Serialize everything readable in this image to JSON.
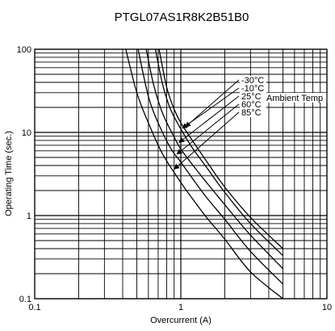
{
  "chart_data": {
    "type": "line",
    "title": "PTGL07AS1R8K2B51B0",
    "xlabel": "Overcurrent (A)",
    "ylabel": "Operating Time (sec.)",
    "xscale": "log",
    "yscale": "log",
    "xlim": [
      0.1,
      10
    ],
    "ylim": [
      0.1,
      100
    ],
    "x_ticks": [
      {
        "value": 0.1,
        "label": "0.1"
      },
      {
        "value": 1,
        "label": "1"
      },
      {
        "value": 10,
        "label": "10"
      }
    ],
    "y_ticks": [
      {
        "value": 0.1,
        "label": "0.1"
      },
      {
        "value": 1,
        "label": "1"
      },
      {
        "value": 10,
        "label": "10"
      },
      {
        "value": 100,
        "label": "100"
      }
    ],
    "grid": true,
    "series": [
      {
        "name": "-30°C",
        "x": [
          0.71,
          0.8,
          0.9,
          1.0,
          1.2,
          1.5,
          2.0,
          3.0,
          5.0
        ],
        "y": [
          100,
          35,
          19,
          13,
          8,
          4.5,
          2.2,
          0.95,
          0.4
        ]
      },
      {
        "name": "-10°C",
        "x": [
          0.67,
          0.75,
          0.85,
          1.0,
          1.2,
          1.5,
          2.0,
          3.0,
          5.0
        ],
        "y": [
          100,
          38,
          19,
          11,
          6.5,
          3.8,
          1.9,
          0.8,
          0.33
        ]
      },
      {
        "name": "25°C",
        "x": [
          0.58,
          0.65,
          0.75,
          0.9,
          1.0,
          1.2,
          1.5,
          2.0,
          3.0,
          5.0
        ],
        "y": [
          100,
          38,
          17,
          8.8,
          6.3,
          4.1,
          2.5,
          1.35,
          0.58,
          0.23
        ]
      },
      {
        "name": "60°C",
        "x": [
          0.51,
          0.6,
          0.7,
          0.85,
          1.0,
          1.2,
          1.5,
          2.0,
          3.0,
          5.0
        ],
        "y": [
          100,
          27,
          13,
          6.5,
          4.4,
          2.8,
          1.65,
          0.9,
          0.37,
          0.15
        ]
      },
      {
        "name": "85°C",
        "x": [
          0.42,
          0.5,
          0.6,
          0.75,
          1.0,
          1.2,
          1.5,
          2.0,
          3.0,
          5.0
        ],
        "y": [
          100,
          30,
          13,
          5.5,
          2.5,
          1.6,
          0.95,
          0.52,
          0.21,
          0.1
        ]
      }
    ],
    "annotation": "Ambient Temp",
    "line_color": "#000000"
  }
}
